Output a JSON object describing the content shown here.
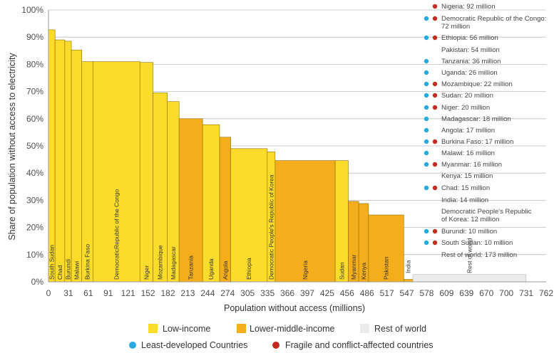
{
  "chart_data": {
    "type": "bar",
    "subtype": "variable-width",
    "xlabel": "Population without access (millions)",
    "ylabel": "Share of population without access to electricity",
    "xlim": [
      0,
      762
    ],
    "ylim": [
      0,
      100
    ],
    "x_ticks": [
      "0",
      "31",
      "61",
      "91",
      "121",
      "152",
      "182",
      "213",
      "244",
      "274",
      "305",
      "335",
      "366",
      "397",
      "425",
      "456",
      "486",
      "517",
      "547",
      "578",
      "609",
      "639",
      "670",
      "700",
      "731",
      "762"
    ],
    "y_ticks": [
      "0%",
      "10%",
      "20%",
      "30%",
      "40%",
      "50%",
      "60%",
      "70%",
      "80%",
      "90%",
      "100%"
    ],
    "y_tick_values": [
      0,
      10,
      20,
      30,
      40,
      50,
      60,
      70,
      80,
      90,
      100
    ],
    "colors": {
      "low": "#FCDC2B",
      "lower_middle": "#F5AE1B",
      "rest": "#EBEBEB",
      "ldc": "#29A9E1",
      "fcs": "#C42B22",
      "grid": "#bdbdbd",
      "axis": "#999999"
    },
    "bars": [
      {
        "name": "South Sudan",
        "x0": 0,
        "width": 10,
        "value": 92.7,
        "income": "low"
      },
      {
        "name": "Chad",
        "x0": 10,
        "width": 15,
        "value": 89,
        "income": "low"
      },
      {
        "name": "Burundi",
        "x0": 25,
        "width": 10,
        "value": 88.5,
        "income": "low"
      },
      {
        "name": "Malawi",
        "x0": 35,
        "width": 16,
        "value": 85.3,
        "income": "low"
      },
      {
        "name": "Burkina Faso",
        "x0": 51,
        "width": 17,
        "value": 81,
        "income": "low"
      },
      {
        "name": "DemocraticRepublic of the Congo",
        "x0": 68,
        "width": 72,
        "value": 81,
        "income": "low"
      },
      {
        "name": "Niger",
        "x0": 140,
        "width": 20,
        "value": 80.7,
        "income": "low"
      },
      {
        "name": "Mozambique",
        "x0": 160,
        "width": 22,
        "value": 69.5,
        "income": "low"
      },
      {
        "name": "Madagascar",
        "x0": 182,
        "width": 18,
        "value": 66.3,
        "income": "low"
      },
      {
        "name": "Tanzania",
        "x0": 200,
        "width": 36,
        "value": 60,
        "income": "lower_middle"
      },
      {
        "name": "Uganda",
        "x0": 236,
        "width": 26,
        "value": 57.8,
        "income": "low"
      },
      {
        "name": "Angola",
        "x0": 262,
        "width": 17,
        "value": 53.2,
        "income": "lower_middle"
      },
      {
        "name": "Ethiopia",
        "x0": 279,
        "width": 56,
        "value": 49,
        "income": "low"
      },
      {
        "name": "Democratic People's Republic of Korea",
        "x0": 335,
        "width": 12,
        "value": 47.8,
        "income": "low"
      },
      {
        "name": "Nigeria",
        "x0": 347,
        "width": 92,
        "value": 44.6,
        "income": "lower_middle"
      },
      {
        "name": "Sudan",
        "x0": 439,
        "width": 20,
        "value": 44.6,
        "income": "low"
      },
      {
        "name": "Myanmar",
        "x0": 459,
        "width": 16,
        "value": 29.6,
        "income": "lower_middle"
      },
      {
        "name": "Kenya",
        "x0": 475,
        "width": 15,
        "value": 28.8,
        "income": "lower_middle"
      },
      {
        "name": "Pakistan",
        "x0": 490,
        "width": 54,
        "value": 24.6,
        "income": "lower_middle"
      },
      {
        "name": "India",
        "x0": 544,
        "width": 14,
        "value": 0.9,
        "income": "lower_middle"
      },
      {
        "name": "Rest of world",
        "x0": 558,
        "width": 173,
        "value": 2.7,
        "income": "rest"
      }
    ],
    "country_list": [
      {
        "label": "Nigeria: 92 million",
        "ldc": false,
        "fcs": true
      },
      {
        "label": "Democratic Republic of the Congo:",
        "label2": "72 million",
        "ldc": true,
        "fcs": true
      },
      {
        "label": "Ethiopia: 56 million",
        "ldc": true,
        "fcs": true
      },
      {
        "label": "Pakistan: 54 million",
        "ldc": false,
        "fcs": false
      },
      {
        "label": "Tanzania: 36 million",
        "ldc": true,
        "fcs": false
      },
      {
        "label": "Uganda: 26 million",
        "ldc": true,
        "fcs": false
      },
      {
        "label": "Mozambique: 22 million",
        "ldc": true,
        "fcs": true
      },
      {
        "label": "Sudan: 20 million",
        "ldc": true,
        "fcs": true
      },
      {
        "label": "Niger: 20 million",
        "ldc": true,
        "fcs": true
      },
      {
        "label": "Madagascar: 18 million",
        "ldc": true,
        "fcs": false
      },
      {
        "label": "Angola: 17 million",
        "ldc": true,
        "fcs": false
      },
      {
        "label": "Burkina Faso: 17 million",
        "ldc": true,
        "fcs": true
      },
      {
        "label": "Malawi: 16 million",
        "ldc": true,
        "fcs": false
      },
      {
        "label": "Myanmar: 16 million",
        "ldc": true,
        "fcs": true
      },
      {
        "label": "Kenya: 15 million",
        "ldc": false,
        "fcs": false
      },
      {
        "label": "Chad: 15 million",
        "ldc": true,
        "fcs": true
      },
      {
        "label": "India: 14 million",
        "ldc": false,
        "fcs": false
      },
      {
        "label": "Democratic People's Republic",
        "label2": "of Korea: 12 million",
        "ldc": false,
        "fcs": false
      },
      {
        "label": "Burundi: 10 million",
        "ldc": true,
        "fcs": true
      },
      {
        "label": "South Sudan: 10 million",
        "ldc": true,
        "fcs": true
      },
      {
        "label": "Rest of world: 173 million",
        "ldc": false,
        "fcs": false
      }
    ],
    "legend": {
      "low": "Low-income",
      "lower_middle": "Lower-middle-income",
      "rest": "Rest of world",
      "ldc": "Least-developed Countries",
      "fcs": "Fragile and conflict-affected countries"
    }
  }
}
